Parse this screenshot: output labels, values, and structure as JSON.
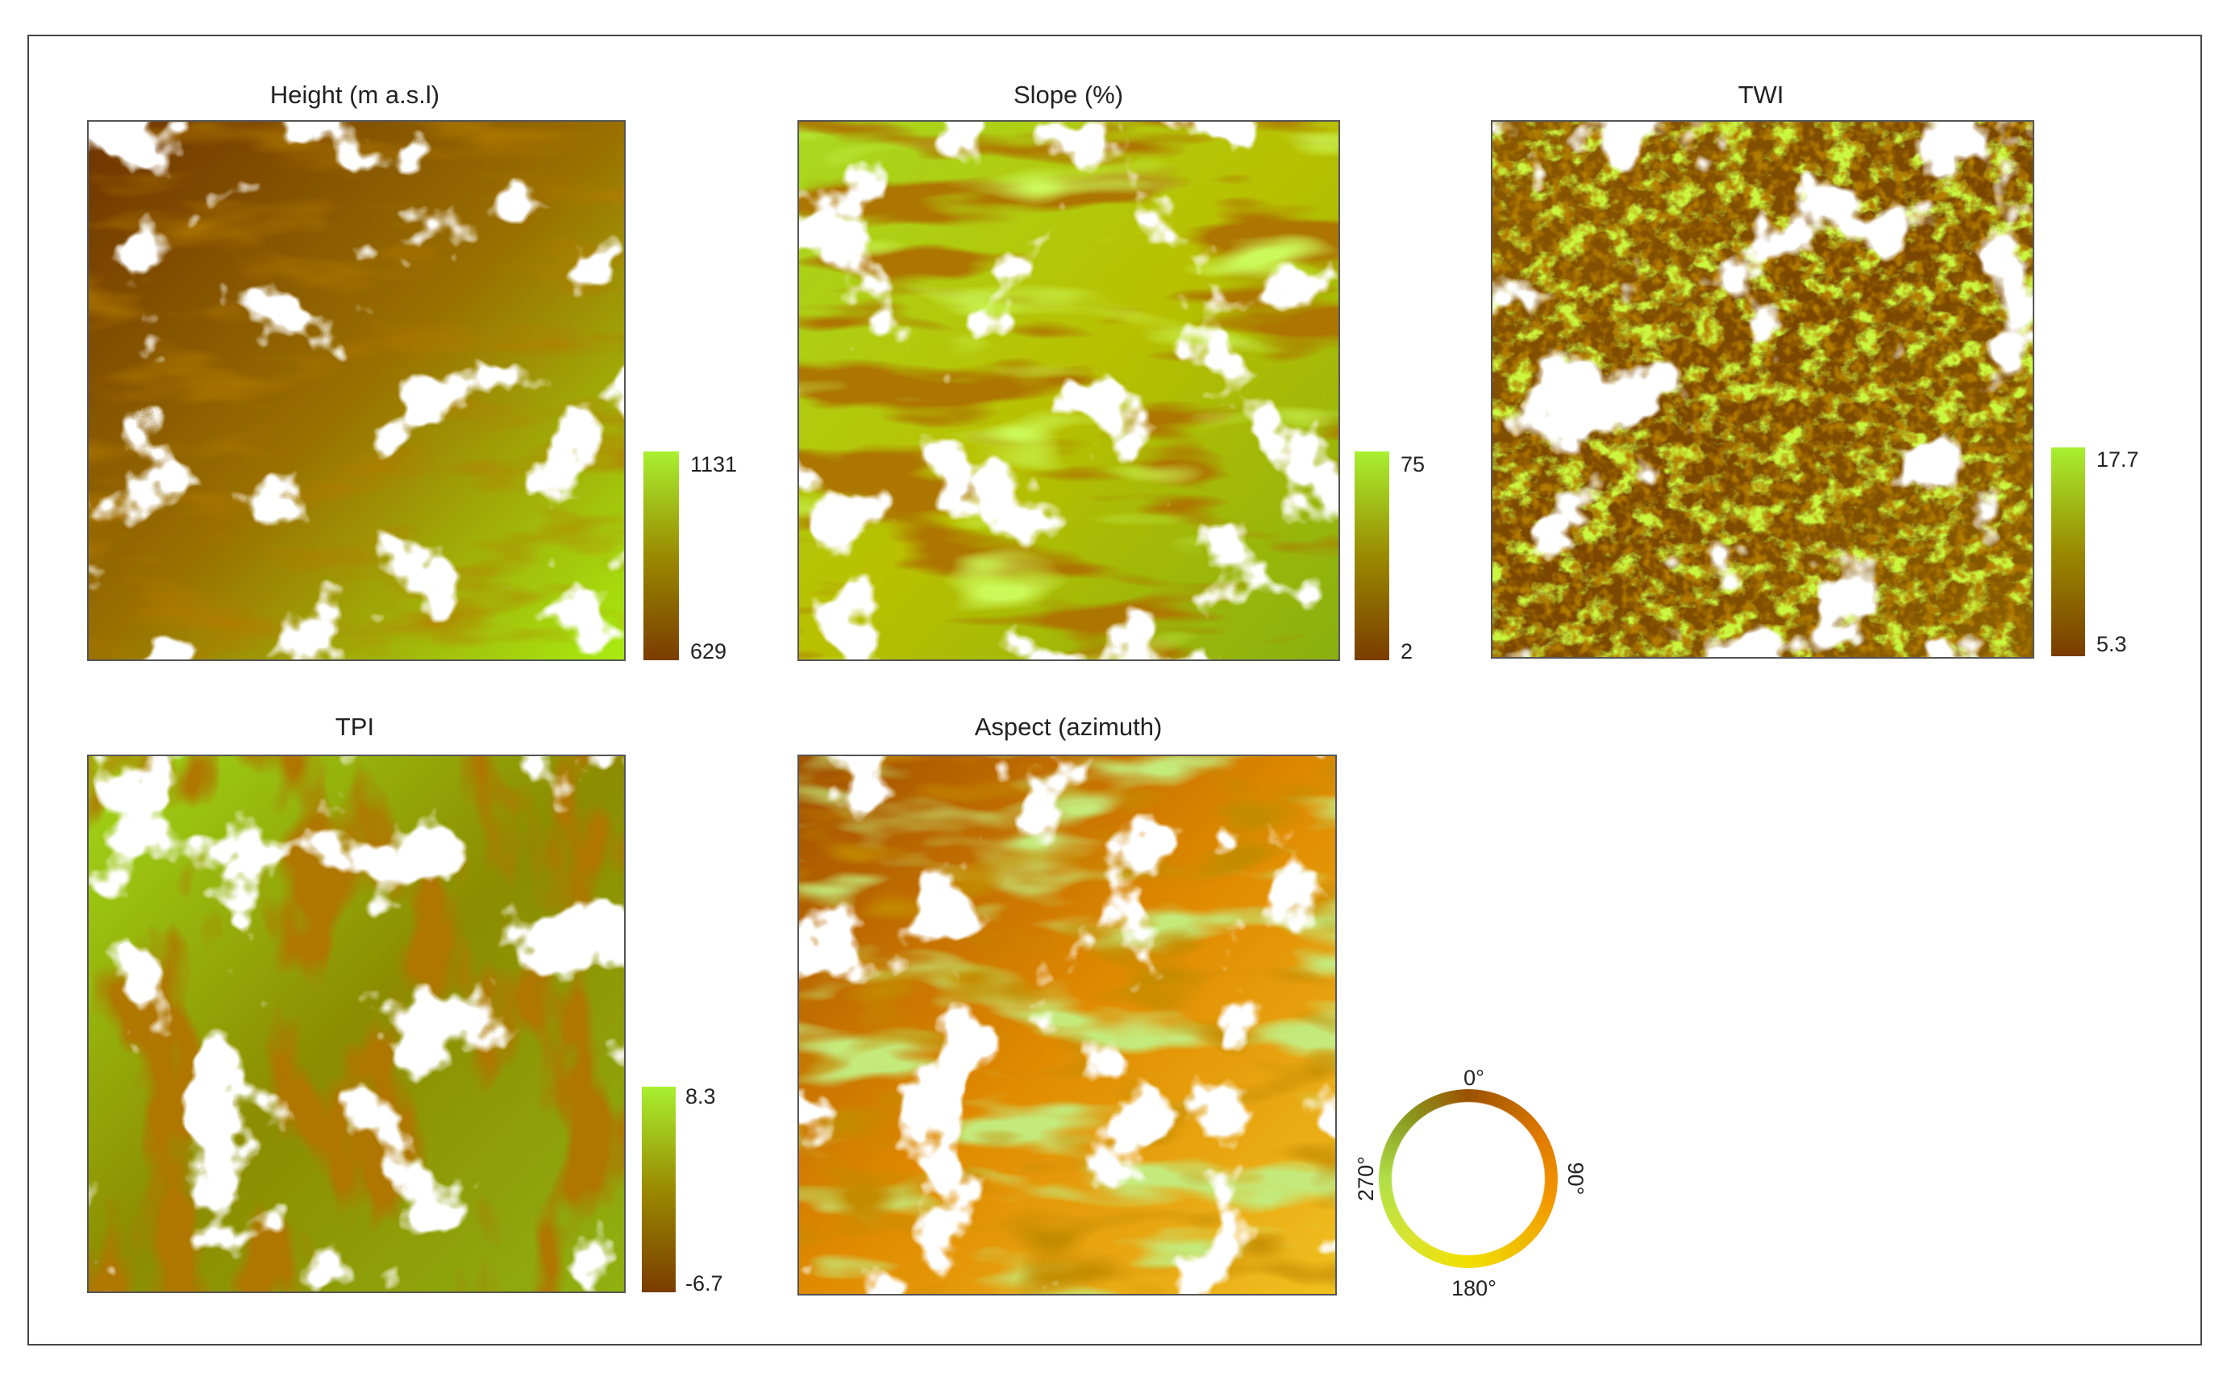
{
  "panels": [
    {
      "title": "Height (m a.s.l)",
      "legend": {
        "max": 1131,
        "min": 629
      }
    },
    {
      "title": "Slope (%)",
      "legend": {
        "max": 75,
        "min": 2
      }
    },
    {
      "title": "TWI",
      "legend": {
        "max": 17.7,
        "min": 5.3
      }
    },
    {
      "title": "TPI",
      "legend": {
        "max": 8.3,
        "min": -6.7
      }
    }
  ],
  "aspect": {
    "title": "Aspect (azimuth)",
    "north": "0°",
    "east": "90°",
    "south": "180°",
    "west": "270°"
  }
}
